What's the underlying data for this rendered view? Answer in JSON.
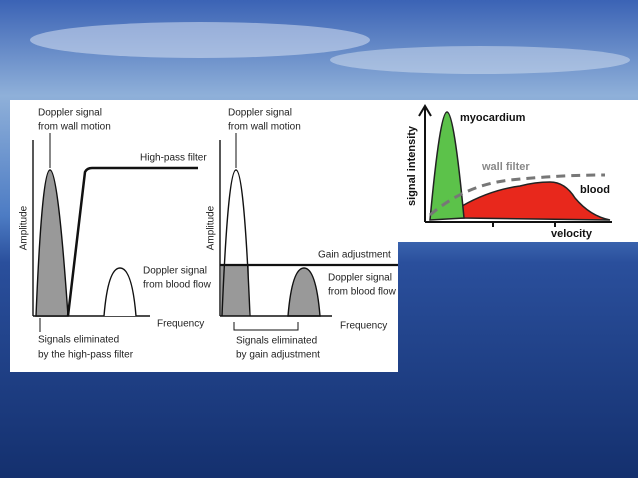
{
  "left_panel": {
    "diagram_1": {
      "wall_signal": [
        "Doppler signal",
        "from wall motion"
      ],
      "filter": "High-pass filter",
      "y_axis": "Amplitude",
      "blood_signal": [
        "Doppler signal",
        "from blood flow"
      ],
      "x_axis": "Frequency",
      "eliminated": [
        "Signals eliminated",
        "by the high-pass filter"
      ]
    },
    "diagram_2": {
      "wall_signal": [
        "Doppler signal",
        "from wall motion"
      ],
      "y_axis": "Amplitude",
      "gain": "Gain adjustment",
      "blood_signal": [
        "Doppler signal",
        "from blood flow"
      ],
      "x_axis": "Frequency",
      "eliminated": [
        "Signals eliminated",
        "by gain adjustment"
      ]
    }
  },
  "right_panel": {
    "y_axis": "signal intensity",
    "myocardium": "myocardium",
    "wall_filter": "wall filter",
    "blood": "blood",
    "x_axis": "velocity"
  }
}
